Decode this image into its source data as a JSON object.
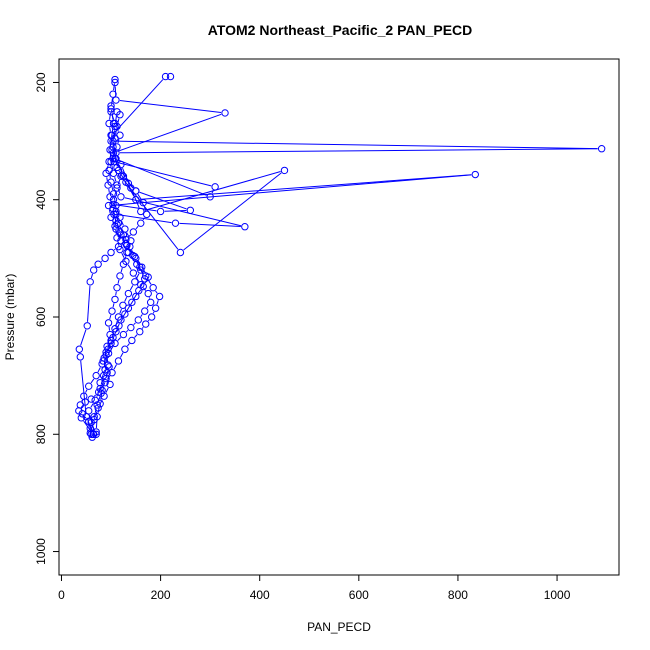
{
  "chart_data": {
    "type": "scatter",
    "title": "ATOM2 Northeast_Pacific_2 PAN_PECD",
    "xlabel": "PAN_PECD",
    "ylabel": "Pressure (mbar)",
    "xlim": [
      -5,
      1125
    ],
    "ylim": [
      1040,
      160
    ],
    "y_reversed": true,
    "x_ticks": [
      0,
      200,
      400,
      600,
      800,
      1000
    ],
    "y_ticks": [
      200,
      400,
      600,
      800,
      1000
    ],
    "x_tick_labels": [
      "0",
      "200",
      "400",
      "600",
      "800",
      "1000"
    ],
    "y_tick_labels": [
      "200",
      "400",
      "600",
      "800",
      "1000"
    ],
    "grid": false,
    "legend": "none",
    "series_color": "#0000ff",
    "marker": "open-circle",
    "connected": true,
    "series": [
      {
        "x": [
          62,
          58,
          66,
          72,
          80,
          78,
          88,
          86,
          92,
          98,
          95,
          102,
          108,
          112,
          118,
          125,
          132,
          140,
          128,
          118,
          110,
          105,
          100,
          96,
          104,
          112,
          118,
          108,
          100
        ],
        "y": [
          805,
          790,
          770,
          750,
          730,
          712,
          690,
          670,
          650,
          630,
          610,
          590,
          570,
          550,
          530,
          510,
          490,
          470,
          450,
          430,
          410,
          390,
          370,
          350,
          330,
          310,
          290,
          270,
          250
        ]
      },
      {
        "x": [
          70,
          60,
          55,
          68,
          78,
          85,
          94,
          90,
          100,
          108,
          115,
          124,
          135,
          148,
          160,
          150,
          138,
          125,
          115,
          110,
          105,
          112,
          120,
          240,
          450,
          160,
          140,
          120,
          110,
          1090,
          100,
          105,
          100
        ],
        "y": [
          800,
          780,
          760,
          742,
          722,
          700,
          682,
          660,
          640,
          620,
          600,
          580,
          560,
          540,
          520,
          500,
          480,
          460,
          440,
          420,
          400,
          380,
          360,
          490,
          350,
          420,
          380,
          340,
          320,
          313,
          300,
          270,
          240
        ]
      },
      {
        "x": [
          64,
          40,
          35,
          48,
          60,
          75,
          88,
          102,
          115,
          128,
          142,
          158,
          170,
          182,
          190,
          198,
          185,
          170,
          152,
          135,
          120,
          110,
          100,
          95,
          835,
          150,
          130,
          115,
          105,
          330,
          110,
          108
        ],
        "y": [
          800,
          772,
          760,
          745,
          740,
          728,
          712,
          695,
          675,
          655,
          640,
          625,
          612,
          600,
          585,
          565,
          550,
          530,
          510,
          490,
          470,
          450,
          430,
          410,
          357,
          400,
          370,
          350,
          320,
          252,
          230,
          200
        ]
      },
      {
        "x": [
          60,
          55,
          42,
          38,
          45,
          55,
          70,
          82,
          95,
          108,
          125,
          140,
          155,
          168,
          180,
          175,
          160,
          145,
          130,
          118,
          112,
          108,
          110,
          230,
          370,
          120,
          112,
          105,
          100,
          98,
          102,
          210,
          220
        ],
        "y": [
          800,
          778,
          765,
          750,
          735,
          718,
          700,
          680,
          662,
          645,
          630,
          618,
          605,
          590,
          575,
          560,
          545,
          525,
          505,
          485,
          465,
          445,
          425,
          440,
          446,
          395,
          375,
          355,
          335,
          315,
          290,
          190,
          190
        ]
      },
      {
        "x": [
          65,
          50,
          38,
          36,
          52,
          58,
          65,
          74,
          88,
          100,
          115,
          130,
          145,
          160,
          172,
          165,
          150,
          135,
          122,
          112,
          106,
          310,
          300,
          108,
          104,
          100,
          96,
          100,
          104,
          108
        ],
        "y": [
          800,
          770,
          668,
          655,
          615,
          540,
          520,
          510,
          500,
          490,
          480,
          468,
          455,
          440,
          425,
          405,
          385,
          372,
          358,
          345,
          335,
          378,
          395,
          330,
          310,
          290,
          270,
          245,
          220,
          195
        ]
      },
      {
        "x": [
          70,
          72,
          78,
          82,
          90,
          96,
          90,
          100,
          110,
          120,
          135,
          150,
          165,
          175,
          162,
          148,
          132,
          120,
          112,
          106,
          104,
          200,
          260,
          150,
          125,
          110,
          104,
          108,
          112
        ],
        "y": [
          796,
          770,
          748,
          725,
          705,
          685,
          665,
          645,
          625,
          605,
          585,
          565,
          548,
          532,
          515,
          497,
          478,
          460,
          442,
          425,
          408,
          420,
          418,
          385,
          360,
          330,
          300,
          275,
          250
        ]
      },
      {
        "x": [
          58,
          66,
          74,
          86,
          98,
          92,
          84,
          94,
          104,
          116,
          128,
          142,
          156,
          168,
          158,
          144,
          130,
          118,
          110,
          104,
          98,
          94,
          90,
          96,
          102,
          108,
          112,
          118
        ],
        "y": [
          798,
          775,
          755,
          735,
          715,
          695,
          675,
          655,
          635,
          615,
          595,
          575,
          555,
          535,
          515,
          495,
          475,
          455,
          435,
          415,
          395,
          375,
          355,
          335,
          315,
          295,
          275,
          255
        ]
      }
    ]
  }
}
